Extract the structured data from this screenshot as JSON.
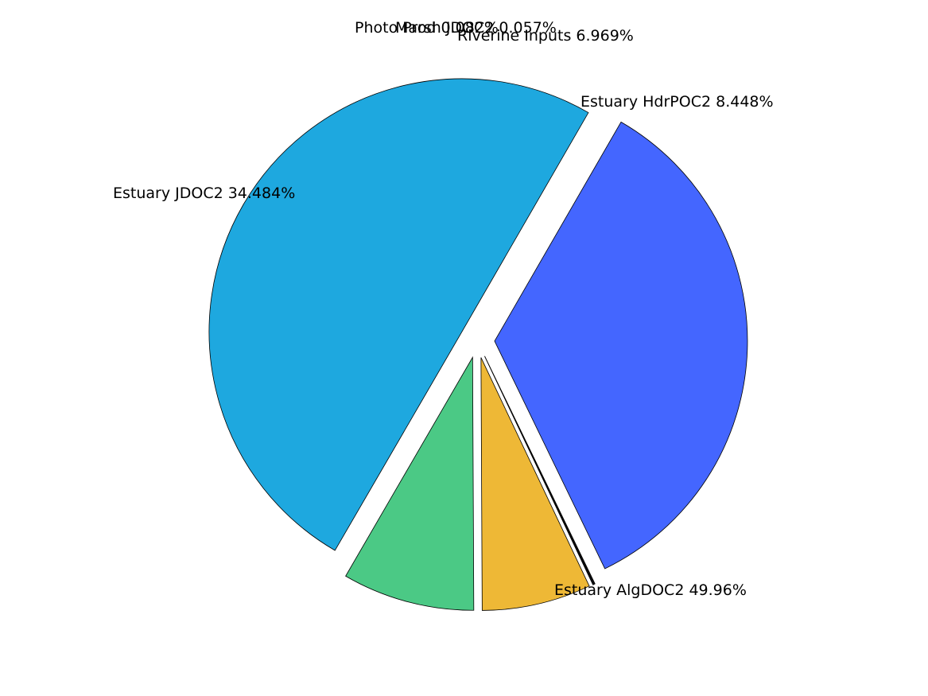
{
  "chart_data": {
    "type": "pie",
    "title": "",
    "slices": [
      {
        "label": "Estuary AlgDOC2 49.96%",
        "value": 49.96,
        "color": "#1EA8DF"
      },
      {
        "label": "Estuary HdrPOC2 8.448%",
        "value": 8.448,
        "color": "#4BC985"
      },
      {
        "label": "Riverine Inputs 6.969%",
        "value": 6.969,
        "color": "#EEB836"
      },
      {
        "label": "Marsh JDOC2 0.057%",
        "value": 0.057,
        "color": "#1F2A44"
      },
      {
        "label": "Photo Prod 0.082%",
        "value": 0.082,
        "color": "#111111"
      },
      {
        "label": "Estuary JDOC2 34.484%",
        "value": 34.484,
        "color": "#4466FF"
      }
    ]
  }
}
